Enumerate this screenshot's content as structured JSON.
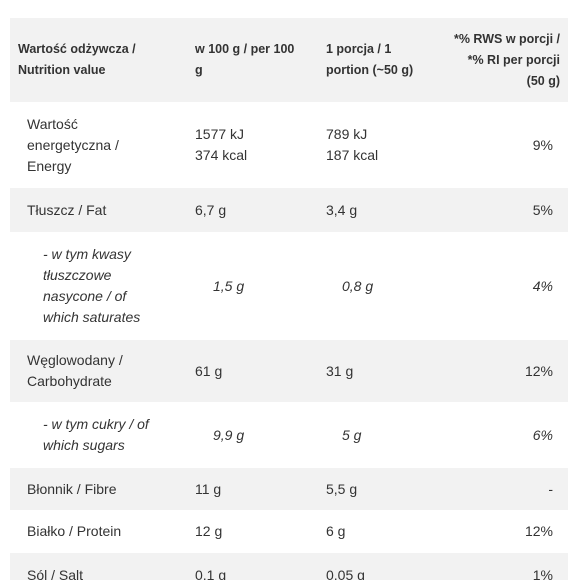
{
  "table": {
    "header": [
      "Wartość odżywcza / Nutrition value",
      "w 100 g / per 100 g",
      "1 porcja / 1 portion (~50 g)",
      [
        "*% RWS w porcji /",
        "*% RI per porcji",
        "(50 g)"
      ]
    ],
    "rows": [
      [
        "Wartość energetyczna / Energy",
        [
          "1577 kJ",
          "374 kcal"
        ],
        [
          "789 kJ",
          "187 kcal"
        ],
        "9%"
      ],
      [
        "Tłuszcz / Fat",
        "6,7 g",
        "3,4 g",
        "5%"
      ],
      [
        "- w tym kwasy tłuszczowe nasycone / of which saturates",
        "1,5 g",
        "0,8 g",
        "4%"
      ],
      [
        "Węglowodany / Carbohydrate",
        "61 g",
        "31 g",
        "12%"
      ],
      [
        "- w tym cukry / of which sugars",
        "9,9 g",
        "5 g",
        "6%"
      ],
      [
        "Błonnik / Fibre",
        "11 g",
        "5,5 g",
        "-"
      ],
      [
        "Białko / Protein",
        "12 g",
        "6 g",
        "12%"
      ],
      [
        "Sól / Salt",
        "0,1 g",
        "0,05 g",
        "1%"
      ]
    ]
  }
}
